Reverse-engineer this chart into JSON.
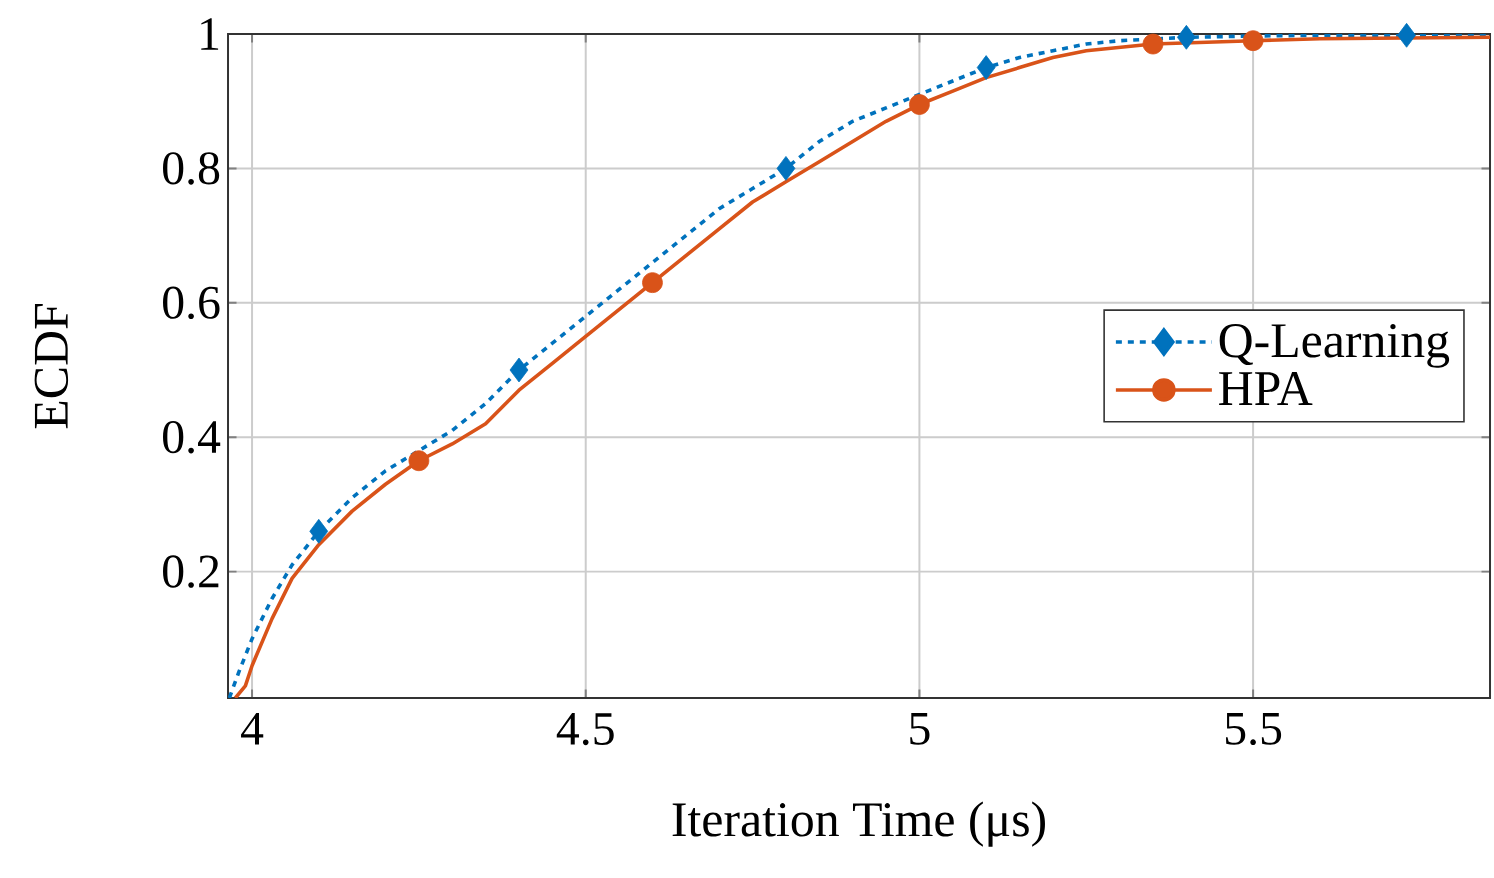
{
  "chart_data": {
    "type": "line",
    "xlabel": "Iteration Time (μs)",
    "ylabel": "ECDF",
    "xlim": [
      3.964,
      5.855
    ],
    "ylim": [
      0.012,
      1
    ],
    "xticks": [
      4,
      4.5,
      5,
      5.5
    ],
    "yticks": [
      0.2,
      0.4,
      0.6,
      0.8,
      1
    ],
    "grid": true,
    "legend": "right",
    "series": [
      {
        "name": "Q-Learning",
        "type": "line",
        "color": "#0072bd",
        "line_style": "dashed",
        "x": [
          3.966,
          3.98,
          4.0,
          4.03,
          4.06,
          4.1,
          4.15,
          4.2,
          4.25,
          4.3,
          4.35,
          4.4,
          4.45,
          4.5,
          4.55,
          4.6,
          4.65,
          4.7,
          4.75,
          4.8,
          4.85,
          4.9,
          4.95,
          5.0,
          5.05,
          5.1,
          5.15,
          5.2,
          5.25,
          5.3,
          5.4,
          5.5,
          5.6,
          5.73,
          5.855
        ],
        "values": [
          0.012,
          0.05,
          0.1,
          0.16,
          0.21,
          0.26,
          0.31,
          0.35,
          0.38,
          0.41,
          0.45,
          0.5,
          0.54,
          0.58,
          0.62,
          0.66,
          0.7,
          0.74,
          0.77,
          0.8,
          0.84,
          0.87,
          0.89,
          0.91,
          0.93,
          0.95,
          0.965,
          0.975,
          0.985,
          0.99,
          0.995,
          0.997,
          0.998,
          0.998,
          0.999
        ]
      },
      {
        "type": "scatter",
        "color": "#0072bd",
        "marker": "diamond",
        "x": [
          4.1,
          4.4,
          4.8,
          5.1,
          5.4,
          5.73
        ],
        "values": [
          0.26,
          0.5,
          0.8,
          0.95,
          0.995,
          0.998
        ]
      },
      {
        "name": "HPA",
        "type": "line",
        "color": "#d95319",
        "line_style": "solid",
        "x": [
          3.975,
          3.99,
          4.0,
          4.03,
          4.06,
          4.1,
          4.15,
          4.2,
          4.25,
          4.3,
          4.35,
          4.4,
          4.45,
          4.5,
          4.55,
          4.6,
          4.65,
          4.7,
          4.75,
          4.8,
          4.85,
          4.9,
          4.95,
          5.0,
          5.05,
          5.1,
          5.15,
          5.2,
          5.25,
          5.35,
          5.5,
          5.6,
          5.855
        ],
        "values": [
          0.012,
          0.03,
          0.06,
          0.13,
          0.19,
          0.24,
          0.29,
          0.33,
          0.365,
          0.39,
          0.42,
          0.47,
          0.51,
          0.55,
          0.59,
          0.63,
          0.67,
          0.71,
          0.75,
          0.78,
          0.81,
          0.84,
          0.87,
          0.895,
          0.915,
          0.935,
          0.95,
          0.965,
          0.975,
          0.985,
          0.99,
          0.993,
          0.995
        ]
      },
      {
        "type": "scatter",
        "color": "#d95319",
        "marker": "circle",
        "x": [
          4.25,
          4.6,
          5.0,
          5.35,
          5.5
        ],
        "values": [
          0.365,
          0.63,
          0.895,
          0.985,
          0.99
        ]
      }
    ]
  }
}
